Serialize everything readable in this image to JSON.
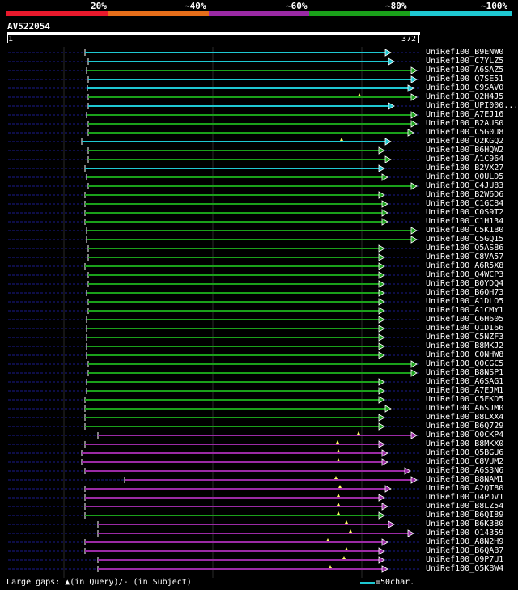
{
  "legend": {
    "labels": [
      "20%",
      "~40%",
      "~60%",
      "~80%",
      "~100%"
    ],
    "colors": [
      "#e8192c",
      "#e66e1a",
      "#9b2aa5",
      "#1aa11a",
      "#1ec8d2"
    ]
  },
  "query": {
    "id": "AV522054",
    "start": "1",
    "end": "372"
  },
  "hits": [
    {
      "label": "UniRef100_B9ENW0",
      "tier": 4,
      "s": 105,
      "e": 483
    },
    {
      "label": "UniRef100_C7YLZ5",
      "tier": 4,
      "s": 109,
      "e": 487
    },
    {
      "label": "UniRef100_A6SAZ5",
      "tier": 3,
      "s": 107,
      "e": 515
    },
    {
      "label": "UniRef100_Q7SE51",
      "tier": 4,
      "s": 109,
      "e": 515
    },
    {
      "label": "UniRef100_C9SAV0",
      "tier": 4,
      "s": 108,
      "e": 511
    },
    {
      "label": "UniRef100_Q2H4J5",
      "tier": 3,
      "s": 109,
      "e": 515,
      "gap": 444
    },
    {
      "label": "UniRef100_UPI000...",
      "tier": 4,
      "s": 109,
      "e": 487
    },
    {
      "label": "UniRef100_A7EJ16",
      "tier": 3,
      "s": 107,
      "e": 515
    },
    {
      "label": "UniRef100_B2AUS0",
      "tier": 3,
      "s": 109,
      "e": 515
    },
    {
      "label": "UniRef100_C5G0U8",
      "tier": 3,
      "s": 109,
      "e": 511
    },
    {
      "label": "UniRef100_Q2KGQ2",
      "tier": 4,
      "s": 101,
      "e": 483,
      "gap": 422
    },
    {
      "label": "UniRef100_B6HQW2",
      "tier": 3,
      "s": 109,
      "e": 475
    },
    {
      "label": "UniRef100_A1C964",
      "tier": 3,
      "s": 109,
      "e": 483
    },
    {
      "label": "UniRef100_B2VX27",
      "tier": 4,
      "s": 105,
      "e": 475
    },
    {
      "label": "UniRef100_Q0ULD5",
      "tier": 3,
      "s": 107,
      "e": 479
    },
    {
      "label": "UniRef100_C4JU83",
      "tier": 3,
      "s": 109,
      "e": 515
    },
    {
      "label": "UniRef100_B2W6D6",
      "tier": 3,
      "s": 105,
      "e": 475
    },
    {
      "label": "UniRef100_C1GC84",
      "tier": 3,
      "s": 105,
      "e": 479
    },
    {
      "label": "UniRef100_C0S9T2",
      "tier": 3,
      "s": 105,
      "e": 479
    },
    {
      "label": "UniRef100_C1H134",
      "tier": 3,
      "s": 105,
      "e": 479
    },
    {
      "label": "UniRef100_C5K1B0",
      "tier": 3,
      "s": 107,
      "e": 515
    },
    {
      "label": "UniRef100_C5GQ15",
      "tier": 3,
      "s": 107,
      "e": 515
    },
    {
      "label": "UniRef100_Q5AS86",
      "tier": 3,
      "s": 109,
      "e": 475
    },
    {
      "label": "UniRef100_C8VA57",
      "tier": 3,
      "s": 109,
      "e": 475
    },
    {
      "label": "UniRef100_A6R5X8",
      "tier": 3,
      "s": 105,
      "e": 475
    },
    {
      "label": "UniRef100_Q4WCP3",
      "tier": 3,
      "s": 109,
      "e": 475
    },
    {
      "label": "UniRef100_B0YDQ4",
      "tier": 3,
      "s": 109,
      "e": 475
    },
    {
      "label": "UniRef100_B6QH73",
      "tier": 3,
      "s": 107,
      "e": 475
    },
    {
      "label": "UniRef100_A1DLO5",
      "tier": 3,
      "s": 109,
      "e": 475
    },
    {
      "label": "UniRef100_A1CMY1",
      "tier": 3,
      "s": 109,
      "e": 475
    },
    {
      "label": "UniRef100_C6H605",
      "tier": 3,
      "s": 107,
      "e": 475
    },
    {
      "label": "UniRef100_Q1DI66",
      "tier": 3,
      "s": 107,
      "e": 475
    },
    {
      "label": "UniRef100_C5NZF3",
      "tier": 3,
      "s": 107,
      "e": 475
    },
    {
      "label": "UniRef100_B8MKJ2",
      "tier": 3,
      "s": 107,
      "e": 475
    },
    {
      "label": "UniRef100_C0NHW8",
      "tier": 3,
      "s": 107,
      "e": 475
    },
    {
      "label": "UniRef100_Q0CGC5",
      "tier": 3,
      "s": 109,
      "e": 515
    },
    {
      "label": "UniRef100_B8NSP1",
      "tier": 3,
      "s": 109,
      "e": 515
    },
    {
      "label": "UniRef100_A6SAG1",
      "tier": 3,
      "s": 107,
      "e": 475
    },
    {
      "label": "UniRef100_A7EJM1",
      "tier": 3,
      "s": 107,
      "e": 475
    },
    {
      "label": "UniRef100_C5FKD5",
      "tier": 3,
      "s": 105,
      "e": 475
    },
    {
      "label": "UniRef100_A6SJM0",
      "tier": 3,
      "s": 105,
      "e": 483
    },
    {
      "label": "UniRef100_B8LXX4",
      "tier": 3,
      "s": 105,
      "e": 475
    },
    {
      "label": "UniRef100_B6Q729",
      "tier": 3,
      "s": 105,
      "e": 475
    },
    {
      "label": "UniRef100_Q0CKP4",
      "tier": 2,
      "s": 121,
      "e": 515,
      "gap": 443
    },
    {
      "label": "UniRef100_B8MKX0",
      "tier": 2,
      "s": 105,
      "e": 475,
      "gap": 417
    },
    {
      "label": "UniRef100_Q5BGU6",
      "tier": 2,
      "s": 101,
      "e": 479,
      "gap": 418
    },
    {
      "label": "UniRef100_C8VUM2",
      "tier": 2,
      "s": 101,
      "e": 479,
      "gap": 418
    },
    {
      "label": "UniRef100_A6S3N6",
      "tier": 2,
      "s": 105,
      "e": 507
    },
    {
      "label": "UniRef100_B8NAM1",
      "tier": 2,
      "s": 154,
      "e": 515,
      "gap": 415
    },
    {
      "label": "UniRef100_A2QT80",
      "tier": 2,
      "s": 105,
      "e": 483,
      "gap": 420
    },
    {
      "label": "UniRef100_Q4PDV1",
      "tier": 2,
      "s": 105,
      "e": 475,
      "gap": 418
    },
    {
      "label": "UniRef100_B8LZ54",
      "tier": 2,
      "s": 105,
      "e": 479,
      "gap": 418
    },
    {
      "label": "UniRef100_B6QI89",
      "tier": 3,
      "s": 105,
      "e": 475,
      "gap": 418
    },
    {
      "label": "UniRef100_B6K380",
      "tier": 2,
      "s": 121,
      "e": 487,
      "gap": 428
    },
    {
      "label": "UniRef100_O14359",
      "tier": 2,
      "s": 121,
      "e": 511,
      "gap": 433
    },
    {
      "label": "UniRef100_A8N2H9",
      "tier": 2,
      "s": 105,
      "e": 479,
      "gap": 405
    },
    {
      "label": "UniRef100_B6QAB7",
      "tier": 2,
      "s": 105,
      "e": 475,
      "gap": 428
    },
    {
      "label": "UniRef100_Q9P7U1",
      "tier": 2,
      "s": 121,
      "e": 475,
      "gap": 425
    },
    {
      "label": "UniRef100_Q5KBW4",
      "tier": 2,
      "s": 121,
      "e": 479,
      "gap": 408
    }
  ],
  "footer": {
    "text": "Large gaps: ▲(in Query)/- (in Subject)",
    "scale_text": "=50char."
  }
}
